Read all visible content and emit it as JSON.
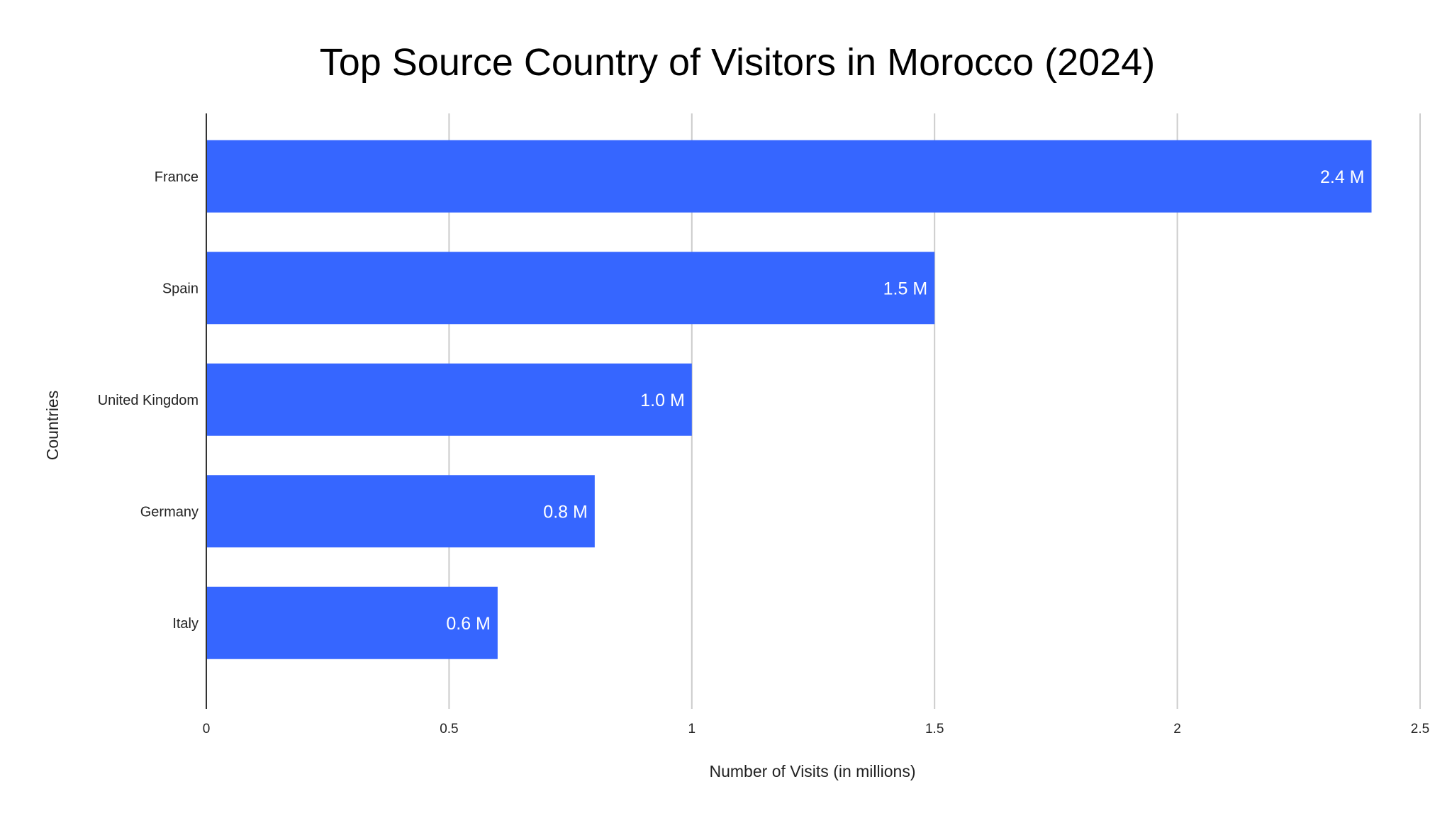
{
  "chart_data": {
    "type": "bar",
    "orientation": "horizontal",
    "title": "Top Source Country of Visitors in Morocco (2024)",
    "xlabel": "Number of Visits (in millions)",
    "ylabel": "Countries",
    "categories": [
      "France",
      "Spain",
      "United Kingdom",
      "Germany",
      "Italy"
    ],
    "values": [
      2.4,
      1.5,
      1.0,
      0.8,
      0.6
    ],
    "data_labels": [
      "2.4 M",
      "1.5 M",
      "1.0 M",
      "0.8 M",
      "0.6 M"
    ],
    "xlim": [
      0,
      2.5
    ],
    "xticks": [
      0,
      0.5,
      1,
      1.5,
      2,
      2.5
    ],
    "xtick_labels": [
      "0",
      "0.5",
      "1",
      "1.5",
      "2",
      "2.5"
    ],
    "grid": "vertical",
    "legend": "none",
    "colors": {
      "bar": "#3666ff",
      "grid": "#cccccc",
      "axis": "#333333",
      "text": "#000000",
      "data_label": "#ffffff"
    }
  }
}
